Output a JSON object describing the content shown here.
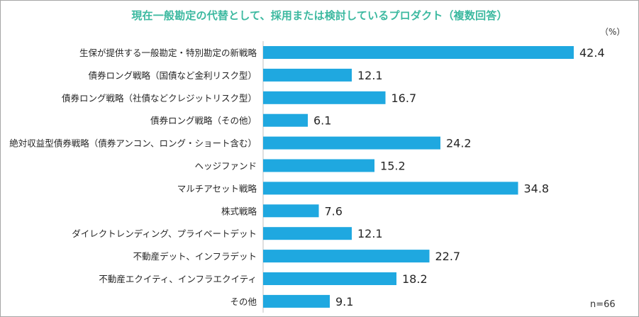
{
  "chart_data": {
    "type": "bar",
    "orientation": "horizontal",
    "title": "現在一般勘定の代替として、採用または検討しているプロダクト（複数回答）",
    "unit_label": "（%）",
    "sample_note": "n=66",
    "bar_color": "#1fa8e0",
    "title_color": "#3cb9a0",
    "categories": [
      "生保が提供する一般勘定・特別勘定の新戦略",
      "債券ロング戦略（国債など金利リスク型）",
      "債券ロング戦略（社債などクレジットリスク型）",
      "債券ロング戦略（その他）",
      "絶対収益型債券戦略（債券アンコン、ロング・ショート含む）",
      "ヘッジファンド",
      "マルチアセット戦略",
      "株式戦略",
      "ダイレクトレンディング、プライベートデット",
      "不動産デット、インフラデット",
      "不動産エクイティ、インフラエクイティ",
      "その他"
    ],
    "values": [
      42.4,
      12.1,
      16.7,
      6.1,
      24.2,
      15.2,
      34.8,
      7.6,
      12.1,
      22.7,
      18.2,
      9.1
    ],
    "value_labels": [
      "42.4",
      "12.1",
      "16.7",
      "6.1",
      "24.2",
      "15.2",
      "34.8",
      "7.6",
      "12.1",
      "22.7",
      "18.2",
      "9.1"
    ],
    "xlim": [
      0,
      42.4
    ],
    "grid": false,
    "legend": "none"
  }
}
